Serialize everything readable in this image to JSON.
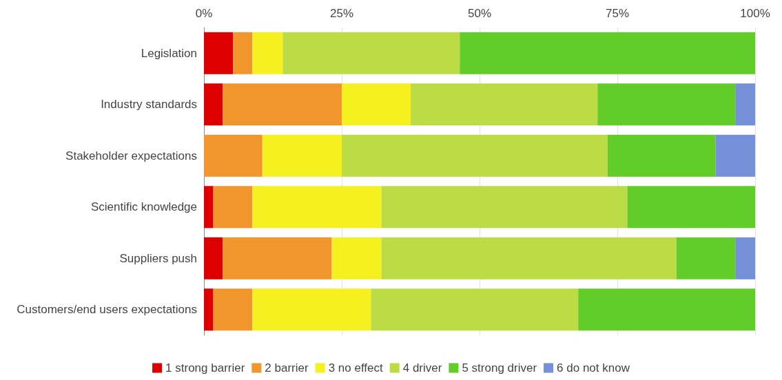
{
  "chart_data": {
    "type": "bar",
    "orientation": "horizontal",
    "stacked": true,
    "categories": [
      "Legislation",
      "Industry standards",
      "Stakeholder expectations",
      "Scientific knowledge",
      "Suppliers push",
      "Customers/end users expectations"
    ],
    "series": [
      {
        "name": "1 strong barrier",
        "color": "#dd0000",
        "values": [
          5.3,
          3.4,
          null,
          1.7,
          3.4,
          1.7
        ]
      },
      {
        "name": "2 barrier",
        "color": "#f0962d",
        "values": [
          3.5,
          21.6,
          10.6,
          7.1,
          19.8,
          7.1
        ]
      },
      {
        "name": "3 no effect",
        "color": "#f5f020",
        "values": [
          5.5,
          12.5,
          14.4,
          23.4,
          9.0,
          21.5
        ]
      },
      {
        "name": "4 driver",
        "color": "#bcdc45",
        "values": [
          32.1,
          33.9,
          48.2,
          44.6,
          53.5,
          37.6
        ]
      },
      {
        "name": "5 strong driver",
        "color": "#62cc28",
        "values": [
          53.6,
          25.0,
          19.6,
          23.2,
          10.7,
          32.1
        ]
      },
      {
        "name": "6 do not know",
        "color": "#7390d8",
        "values": [
          null,
          3.6,
          7.2,
          null,
          3.6,
          null
        ]
      }
    ],
    "xlim": [
      0,
      100
    ],
    "xticks": [
      {
        "value": 0,
        "label": "0%"
      },
      {
        "value": 25,
        "label": "25%"
      },
      {
        "value": 50,
        "label": "50%"
      },
      {
        "value": 75,
        "label": "75%"
      },
      {
        "value": 100,
        "label": "100%"
      }
    ],
    "grid": "x",
    "legend": "bottom"
  }
}
